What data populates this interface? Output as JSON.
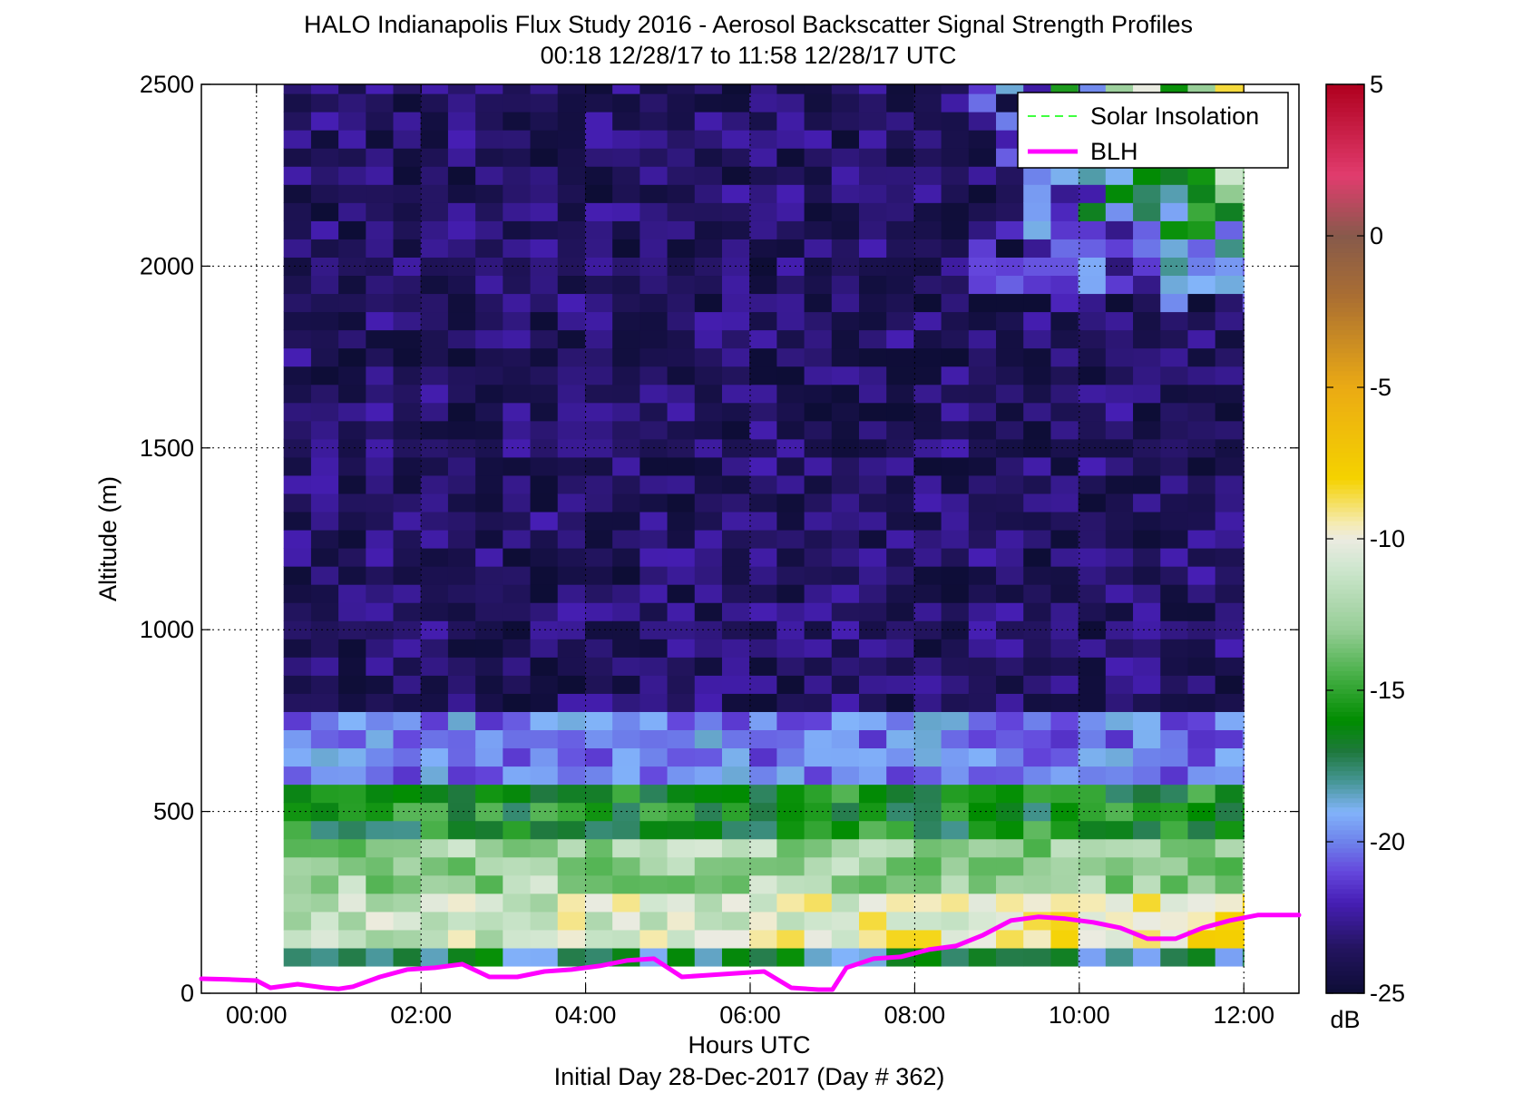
{
  "chart_data": {
    "type": "heatmap",
    "title": "HALO Indianapolis Flux Study 2016 - Aerosol Backscatter Signal Strength Profiles",
    "subtitle": "00:18 12/28/17 to 11:58 12/28/17  UTC",
    "xlabel": "Hours UTC",
    "ylabel": "Altitude (m)",
    "footer": "Initial Day 28-Dec-2017 (Day # 362)",
    "xlim": [
      -0.67,
      12.67
    ],
    "ylim": [
      0,
      2500
    ],
    "xticks": [
      0,
      2,
      4,
      6,
      8,
      10,
      12
    ],
    "xtick_labels": [
      "00:00",
      "02:00",
      "04:00",
      "06:00",
      "08:00",
      "10:00",
      "12:00"
    ],
    "yticks": [
      0,
      500,
      1000,
      1500,
      2000,
      2500
    ],
    "ytick_labels": [
      "0",
      "500",
      "1000",
      "1500",
      "2000",
      "2500"
    ],
    "grid": "dotted",
    "data_x_range": [
      0.33,
      12.0
    ],
    "data_time_step_hours": 0.333,
    "data_altitude_step_m": 50,
    "data_start_altitude_m": 75,
    "colorbar": {
      "label": "dB",
      "range": [
        -25,
        5
      ],
      "ticks": [
        5,
        0,
        -5,
        -10,
        -15,
        -20,
        -25
      ],
      "tick_labels": [
        "5",
        "0",
        "-5",
        "-10",
        "-15",
        "-20",
        "-25"
      ]
    },
    "legend": {
      "position": "top-right",
      "entries": [
        "Solar Insolation",
        "BLH"
      ]
    },
    "series": [
      {
        "name": "Solar Insolation",
        "style": "dashed",
        "color": "#00ff00",
        "x": [],
        "y": []
      },
      {
        "name": "BLH",
        "style": "solid",
        "color": "#ff00ff",
        "x": [
          -0.67,
          -0.33,
          0,
          0.17,
          0.5,
          0.83,
          1.0,
          1.17,
          1.5,
          1.83,
          2.17,
          2.5,
          2.83,
          3.17,
          3.5,
          3.83,
          4.17,
          4.5,
          4.83,
          5.17,
          5.5,
          5.83,
          6.17,
          6.5,
          6.83,
          7.0,
          7.17,
          7.5,
          7.83,
          8.17,
          8.5,
          8.83,
          9.17,
          9.5,
          9.83,
          10.17,
          10.5,
          10.83,
          11.17,
          11.5,
          11.83,
          12.17,
          12.67
        ],
        "y": [
          40,
          38,
          35,
          15,
          25,
          15,
          12,
          18,
          45,
          65,
          70,
          80,
          45,
          45,
          60,
          65,
          75,
          90,
          95,
          45,
          50,
          55,
          60,
          15,
          10,
          10,
          70,
          95,
          100,
          120,
          130,
          160,
          200,
          210,
          205,
          195,
          180,
          150,
          150,
          180,
          200,
          215,
          215
        ]
      }
    ]
  }
}
